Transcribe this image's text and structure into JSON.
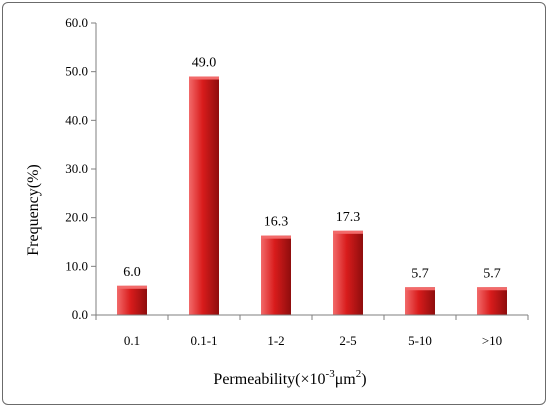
{
  "chart_data": {
    "type": "bar",
    "categories": [
      "0.1",
      "0.1-1",
      "1-2",
      "2-5",
      "5-10",
      ">10"
    ],
    "values": [
      6.0,
      49.0,
      16.3,
      17.3,
      5.7,
      5.7
    ],
    "data_labels": [
      "6.0",
      "49.0",
      "16.3",
      "17.3",
      "5.7",
      "5.7"
    ],
    "ylim": [
      0,
      60
    ],
    "yticks": [
      "0.0",
      "10.0",
      "20.0",
      "30.0",
      "40.0",
      "50.0",
      "60.0"
    ],
    "ylabel": "Frequency(%)",
    "xlabel": {
      "prefix": "Permeability(",
      "times": "×",
      "base": "10",
      "exponent": "-3",
      "unit": "μm",
      "unit_exponent": "2",
      "suffix": ")"
    },
    "grid": false,
    "legend": "none",
    "colors": {
      "bar_light": "#f26a6a",
      "bar_main": "#d91c1c",
      "bar_dark": "#8e0d0d",
      "axis": "#7f7f7f"
    }
  }
}
